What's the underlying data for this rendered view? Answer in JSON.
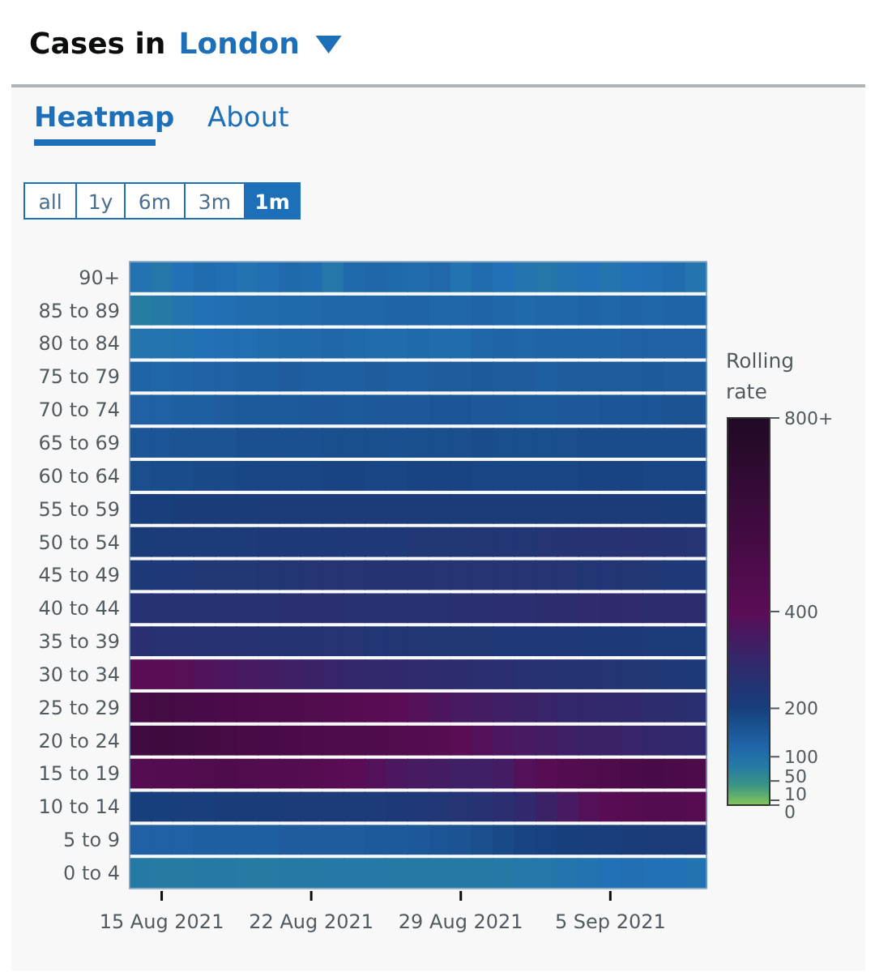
{
  "chart_data": {
    "type": "heatmap",
    "title": "Cases in",
    "subtitle": "London",
    "clabel": "Rolling rate",
    "annotations": [
      "Heatmap",
      "About",
      "all",
      "1y",
      "6m",
      "3m",
      "1m"
    ],
    "x": [
      "2021-08-14",
      "2021-08-15",
      "2021-08-16",
      "2021-08-17",
      "2021-08-18",
      "2021-08-19",
      "2021-08-20",
      "2021-08-21",
      "2021-08-22",
      "2021-08-23",
      "2021-08-24",
      "2021-08-25",
      "2021-08-26",
      "2021-08-27",
      "2021-08-28",
      "2021-08-29",
      "2021-08-30",
      "2021-08-31",
      "2021-09-01",
      "2021-09-02",
      "2021-09-03",
      "2021-09-04",
      "2021-09-05",
      "2021-09-06",
      "2021-09-07",
      "2021-09-08",
      "2021-09-09"
    ],
    "xlim": [
      "2021-08-13T12:00",
      "2021-09-09T12:00"
    ],
    "xticks": [
      {
        "value": "2021-08-15",
        "label": "15 Aug 2021"
      },
      {
        "value": "2021-08-22",
        "label": "22 Aug 2021"
      },
      {
        "value": "2021-08-29",
        "label": "29 Aug 2021"
      },
      {
        "value": "2021-09-05",
        "label": "5 Sep 2021"
      }
    ],
    "y_categories": [
      "90+",
      "85 to 89",
      "80 to 84",
      "75 to 79",
      "70 to 74",
      "65 to 69",
      "60 to 64",
      "55 to 59",
      "50 to 54",
      "45 to 49",
      "40 to 44",
      "35 to 39",
      "30 to 34",
      "25 to 29",
      "20 to 24",
      "15 to 19",
      "10 to 14",
      "5 to 9",
      "0 to 4"
    ],
    "cells": [
      [
        95,
        85,
        100,
        110,
        105,
        95,
        105,
        115,
        110,
        85,
        115,
        120,
        115,
        110,
        118,
        95,
        110,
        100,
        90,
        85,
        95,
        100,
        90,
        100,
        105,
        110,
        90
      ],
      [
        75,
        80,
        90,
        100,
        105,
        110,
        110,
        115,
        115,
        120,
        120,
        120,
        125,
        125,
        120,
        120,
        125,
        120,
        115,
        120,
        120,
        125,
        120,
        125,
        120,
        125,
        125
      ],
      [
        90,
        90,
        95,
        100,
        105,
        105,
        110,
        115,
        115,
        120,
        115,
        110,
        110,
        115,
        110,
        110,
        120,
        125,
        120,
        125,
        125,
        125,
        125,
        130,
        130,
        130,
        130
      ],
      [
        125,
        120,
        125,
        130,
        130,
        135,
        135,
        140,
        135,
        135,
        135,
        140,
        135,
        135,
        140,
        140,
        145,
        140,
        140,
        135,
        140,
        140,
        140,
        140,
        145,
        140,
        140
      ],
      [
        130,
        130,
        135,
        135,
        140,
        145,
        145,
        145,
        150,
        150,
        145,
        150,
        150,
        150,
        155,
        155,
        150,
        150,
        145,
        145,
        150,
        150,
        155,
        155,
        155,
        160,
        160
      ],
      [
        155,
        155,
        160,
        160,
        160,
        165,
        165,
        165,
        165,
        170,
        170,
        170,
        165,
        170,
        170,
        170,
        175,
        170,
        170,
        170,
        170,
        175,
        175,
        175,
        175,
        175,
        175
      ],
      [
        170,
        175,
        175,
        180,
        180,
        185,
        185,
        185,
        185,
        190,
        190,
        185,
        185,
        190,
        190,
        190,
        185,
        185,
        185,
        185,
        185,
        190,
        190,
        190,
        185,
        185,
        185
      ],
      [
        205,
        205,
        210,
        210,
        210,
        210,
        215,
        215,
        215,
        215,
        220,
        220,
        220,
        220,
        215,
        215,
        215,
        215,
        215,
        215,
        215,
        215,
        215,
        215,
        215,
        210,
        210
      ],
      [
        210,
        215,
        215,
        220,
        220,
        220,
        225,
        225,
        225,
        225,
        230,
        230,
        230,
        235,
        235,
        235,
        240,
        240,
        240,
        245,
        250,
        255,
        255,
        260,
        255,
        250,
        245
      ],
      [
        225,
        230,
        230,
        235,
        235,
        235,
        240,
        240,
        245,
        245,
        245,
        250,
        250,
        250,
        245,
        245,
        245,
        245,
        245,
        245,
        245,
        240,
        240,
        240,
        235,
        230,
        230
      ],
      [
        250,
        255,
        255,
        255,
        260,
        260,
        260,
        265,
        265,
        265,
        260,
        260,
        260,
        260,
        260,
        265,
        265,
        270,
        270,
        275,
        280,
        285,
        290,
        285,
        280,
        280,
        275
      ],
      [
        265,
        260,
        260,
        255,
        255,
        255,
        250,
        250,
        250,
        245,
        245,
        240,
        240,
        240,
        235,
        235,
        235,
        230,
        230,
        230,
        230,
        225,
        225,
        225,
        220,
        220,
        215
      ],
      [
        410,
        400,
        390,
        375,
        360,
        350,
        340,
        330,
        320,
        310,
        300,
        295,
        290,
        285,
        280,
        275,
        270,
        265,
        260,
        255,
        250,
        250,
        245,
        240,
        235,
        230,
        225
      ],
      [
        540,
        550,
        540,
        520,
        510,
        500,
        490,
        480,
        470,
        460,
        440,
        420,
        400,
        380,
        365,
        350,
        340,
        330,
        320,
        310,
        300,
        300,
        295,
        290,
        280,
        275,
        265
      ],
      [
        580,
        590,
        580,
        560,
        540,
        530,
        520,
        510,
        500,
        495,
        490,
        480,
        470,
        460,
        440,
        410,
        380,
        360,
        350,
        340,
        330,
        320,
        320,
        310,
        305,
        300,
        290
      ],
      [
        440,
        450,
        460,
        470,
        480,
        470,
        460,
        450,
        440,
        420,
        400,
        380,
        360,
        350,
        340,
        330,
        330,
        340,
        380,
        420,
        450,
        470,
        490,
        510,
        520,
        510,
        500
      ],
      [
        200,
        200,
        205,
        205,
        210,
        210,
        210,
        215,
        215,
        215,
        220,
        220,
        225,
        230,
        235,
        245,
        255,
        270,
        290,
        320,
        350,
        380,
        420,
        440,
        450,
        450,
        440
      ],
      [
        130,
        130,
        130,
        135,
        135,
        135,
        135,
        140,
        140,
        140,
        140,
        145,
        145,
        150,
        155,
        160,
        170,
        180,
        190,
        195,
        200,
        205,
        205,
        210,
        215,
        215,
        220
      ],
      [
        80,
        78,
        78,
        80,
        80,
        78,
        78,
        80,
        80,
        82,
        82,
        82,
        80,
        80,
        80,
        80,
        80,
        82,
        85,
        85,
        90,
        95,
        100,
        105,
        100,
        100,
        95
      ]
    ],
    "clim": [
      0,
      800
    ],
    "cticks": [
      0,
      10,
      50,
      100,
      200,
      400,
      {
        "value": 800,
        "label": "800+"
      }
    ]
  }
}
